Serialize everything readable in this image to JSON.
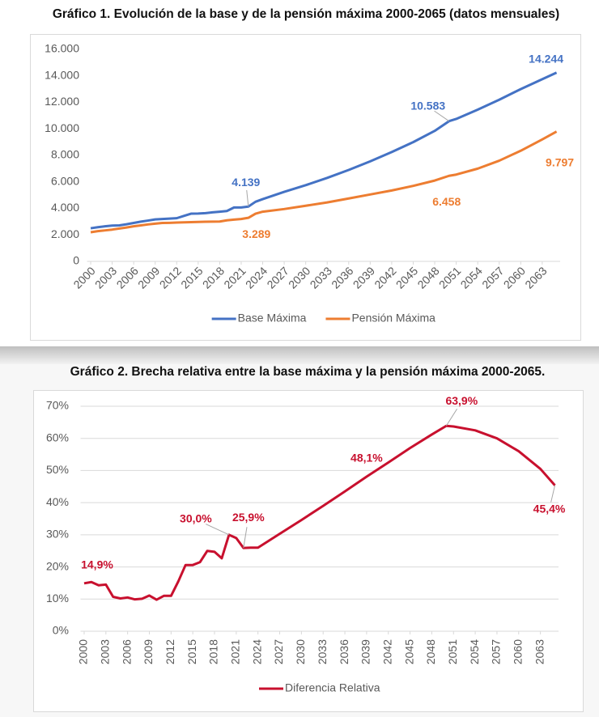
{
  "chart_data": [
    {
      "type": "line",
      "title": "Gráfico 1. Evolución de la base y de la pensión máxima 2000-2065 (datos mensuales)",
      "x": [
        2000,
        2001,
        2002,
        2003,
        2004,
        2005,
        2006,
        2007,
        2008,
        2009,
        2010,
        2011,
        2012,
        2013,
        2014,
        2015,
        2016,
        2017,
        2018,
        2019,
        2020,
        2021,
        2022,
        2023,
        2024,
        2027,
        2030,
        2033,
        2036,
        2039,
        2042,
        2045,
        2048,
        2050,
        2051,
        2054,
        2057,
        2060,
        2063,
        2065
      ],
      "series": [
        {
          "name": "Base Máxima",
          "color": "#4472c4",
          "values": [
            2500,
            2580,
            2650,
            2700,
            2720,
            2800,
            2900,
            3000,
            3080,
            3170,
            3200,
            3230,
            3260,
            3430,
            3600,
            3610,
            3640,
            3700,
            3750,
            3800,
            4070,
            4070,
            4139,
            4500,
            4700,
            5250,
            5750,
            6300,
            6900,
            7550,
            8250,
            9000,
            9850,
            10583,
            10750,
            11450,
            12200,
            13000,
            13750,
            14244
          ],
          "value_labels": [
            null,
            null,
            null,
            null,
            null,
            null,
            null,
            null,
            null,
            null,
            null,
            null,
            null,
            null,
            null,
            null,
            null,
            null,
            null,
            null,
            null,
            null,
            "4.139",
            null,
            null,
            null,
            null,
            null,
            null,
            null,
            null,
            null,
            null,
            "10.583",
            null,
            null,
            null,
            null,
            null,
            "14.244"
          ]
        },
        {
          "name": "Pensión Máxima",
          "color": "#ed7d31",
          "values": [
            2200,
            2280,
            2340,
            2400,
            2480,
            2560,
            2650,
            2720,
            2790,
            2850,
            2900,
            2910,
            2930,
            2950,
            2960,
            2980,
            2990,
            3000,
            3010,
            3100,
            3150,
            3200,
            3289,
            3600,
            3750,
            3950,
            4200,
            4450,
            4750,
            5050,
            5350,
            5700,
            6100,
            6458,
            6550,
            7000,
            7600,
            8350,
            9200,
            9797
          ],
          "value_labels": [
            null,
            null,
            null,
            null,
            null,
            null,
            null,
            null,
            null,
            null,
            null,
            null,
            null,
            null,
            null,
            null,
            null,
            null,
            null,
            null,
            null,
            null,
            "3.289",
            null,
            null,
            null,
            null,
            null,
            null,
            null,
            null,
            null,
            null,
            "6.458",
            null,
            null,
            null,
            null,
            null,
            "9.797"
          ]
        }
      ],
      "xlim": [
        1999.5,
        2065.5
      ],
      "xticks": [
        2000,
        2003,
        2006,
        2009,
        2012,
        2015,
        2018,
        2021,
        2024,
        2027,
        2030,
        2033,
        2036,
        2039,
        2042,
        2045,
        2048,
        2051,
        2054,
        2057,
        2060,
        2063
      ],
      "ylim": [
        0,
        16000
      ],
      "yticks": [
        0,
        {
          "value": 2000,
          "label": "2.000"
        },
        {
          "value": 4000,
          "label": "4.000"
        },
        {
          "value": 6000,
          "label": "6.000"
        },
        {
          "value": 8000,
          "label": "8.000"
        },
        {
          "value": 10000,
          "label": "10.000"
        },
        {
          "value": 12000,
          "label": "12.000"
        },
        {
          "value": 14000,
          "label": "14.000"
        },
        {
          "value": 16000,
          "label": "16.000"
        }
      ],
      "grid": false,
      "legend": "bottom"
    },
    {
      "type": "line",
      "title": "Gráfico 2. Brecha relativa entre la base máxima y la pensión máxima 2000-2065.",
      "x": [
        2000,
        2001,
        2002,
        2003,
        2004,
        2005,
        2006,
        2007,
        2008,
        2009,
        2010,
        2011,
        2012,
        2013,
        2014,
        2015,
        2016,
        2017,
        2018,
        2019,
        2020,
        2021,
        2022,
        2023,
        2024,
        2027,
        2030,
        2033,
        2036,
        2039,
        2042,
        2045,
        2048,
        2050,
        2051,
        2054,
        2057,
        2060,
        2063,
        2065
      ],
      "series": [
        {
          "name": "Diferencia Relativa",
          "color": "#c8102e",
          "values": [
            14.9,
            15.3,
            14.3,
            14.5,
            10.7,
            10.2,
            10.5,
            9.9,
            10.1,
            11.1,
            9.8,
            11.0,
            11.0,
            15.5,
            20.6,
            20.6,
            21.5,
            25.0,
            24.7,
            22.7,
            30.0,
            29.0,
            25.9,
            26.0,
            26.0,
            30.3,
            34.6,
            39.0,
            43.5,
            48.1,
            52.5,
            57.0,
            61.2,
            63.9,
            63.7,
            62.5,
            60.0,
            56.0,
            50.5,
            45.4
          ],
          "value_labels": [
            "14,9%",
            null,
            null,
            null,
            null,
            null,
            null,
            null,
            null,
            null,
            null,
            null,
            null,
            null,
            null,
            null,
            null,
            null,
            null,
            null,
            "30,0%",
            null,
            "25,9%",
            null,
            null,
            null,
            null,
            null,
            null,
            "48,1%",
            null,
            null,
            null,
            "63,9%",
            null,
            null,
            null,
            null,
            null,
            "45,4%"
          ]
        }
      ],
      "xlim": [
        1999.5,
        2065.5
      ],
      "xticks": [
        2000,
        2003,
        2006,
        2009,
        2012,
        2015,
        2018,
        2021,
        2024,
        2027,
        2030,
        2033,
        2036,
        2039,
        2042,
        2045,
        2048,
        2051,
        2054,
        2057,
        2060,
        2063
      ],
      "ylim": [
        0,
        70
      ],
      "yticks": [
        {
          "value": 0,
          "label": "0%"
        },
        {
          "value": 10,
          "label": "10%"
        },
        {
          "value": 20,
          "label": "20%"
        },
        {
          "value": 30,
          "label": "30%"
        },
        {
          "value": 40,
          "label": "40%"
        },
        {
          "value": 50,
          "label": "50%"
        },
        {
          "value": 60,
          "label": "60%"
        },
        {
          "value": 70,
          "label": "70%"
        }
      ],
      "grid": true,
      "legend": "bottom"
    }
  ]
}
